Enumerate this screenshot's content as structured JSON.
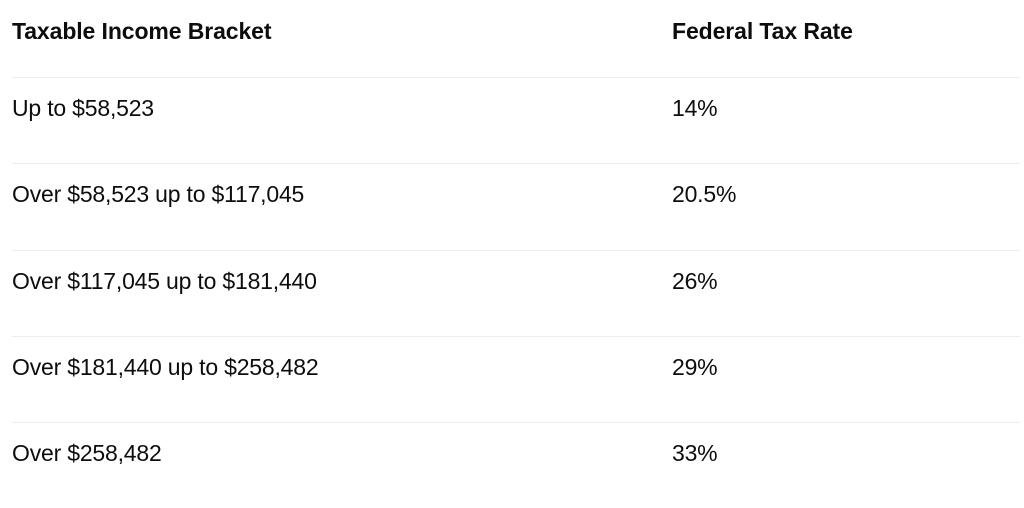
{
  "page": {
    "background": "#ffffff",
    "text_color": "#0d0d0d",
    "divider_color": "#ededed"
  },
  "chart_data": {
    "type": "table",
    "columns": [
      "Taxable Income Bracket",
      "Federal Tax Rate"
    ],
    "rows": [
      {
        "bracket": "Up to $58,523",
        "rate": "14%"
      },
      {
        "bracket": "Over $58,523 up to $117,045",
        "rate": "20.5%"
      },
      {
        "bracket": "Over $117,045 up to $181,440",
        "rate": "26%"
      },
      {
        "bracket": "Over $181,440 up to $258,482",
        "rate": "29%"
      },
      {
        "bracket": "Over $258,482",
        "rate": "33%"
      }
    ],
    "layout": {
      "grid": "horizontal-dividers-only",
      "header_bold": true,
      "column_alignment": [
        "left",
        "left"
      ]
    }
  }
}
